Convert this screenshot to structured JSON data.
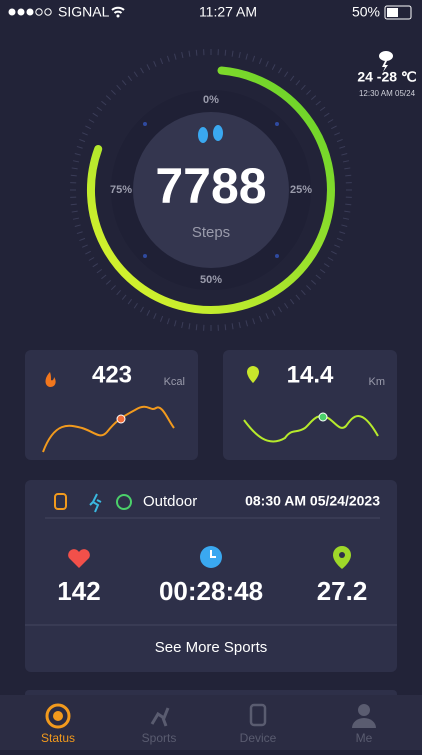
{
  "status_bar": {
    "carrier": "SIGNAL",
    "time": "11:27 AM",
    "battery": "50%"
  },
  "weather": {
    "temperature": "24 -28 ℃",
    "updated": "12:30 AM 05/24"
  },
  "steps": {
    "count": "7788",
    "unit": "Steps",
    "ring_labels": [
      "0%",
      "25%",
      "50%",
      "75%"
    ]
  },
  "calories": {
    "value": "423",
    "unit": "Kcal"
  },
  "distance": {
    "value": "14.4",
    "unit": "Km"
  },
  "workout": {
    "mode": "Outdoor",
    "datetime": "08:30 AM 05/24/2023",
    "heart_rate": "142",
    "duration": "00:28:48",
    "distance": "27.2",
    "more": "See More Sports"
  },
  "tabs": [
    "Status",
    "Sports",
    "Device",
    "Me"
  ]
}
